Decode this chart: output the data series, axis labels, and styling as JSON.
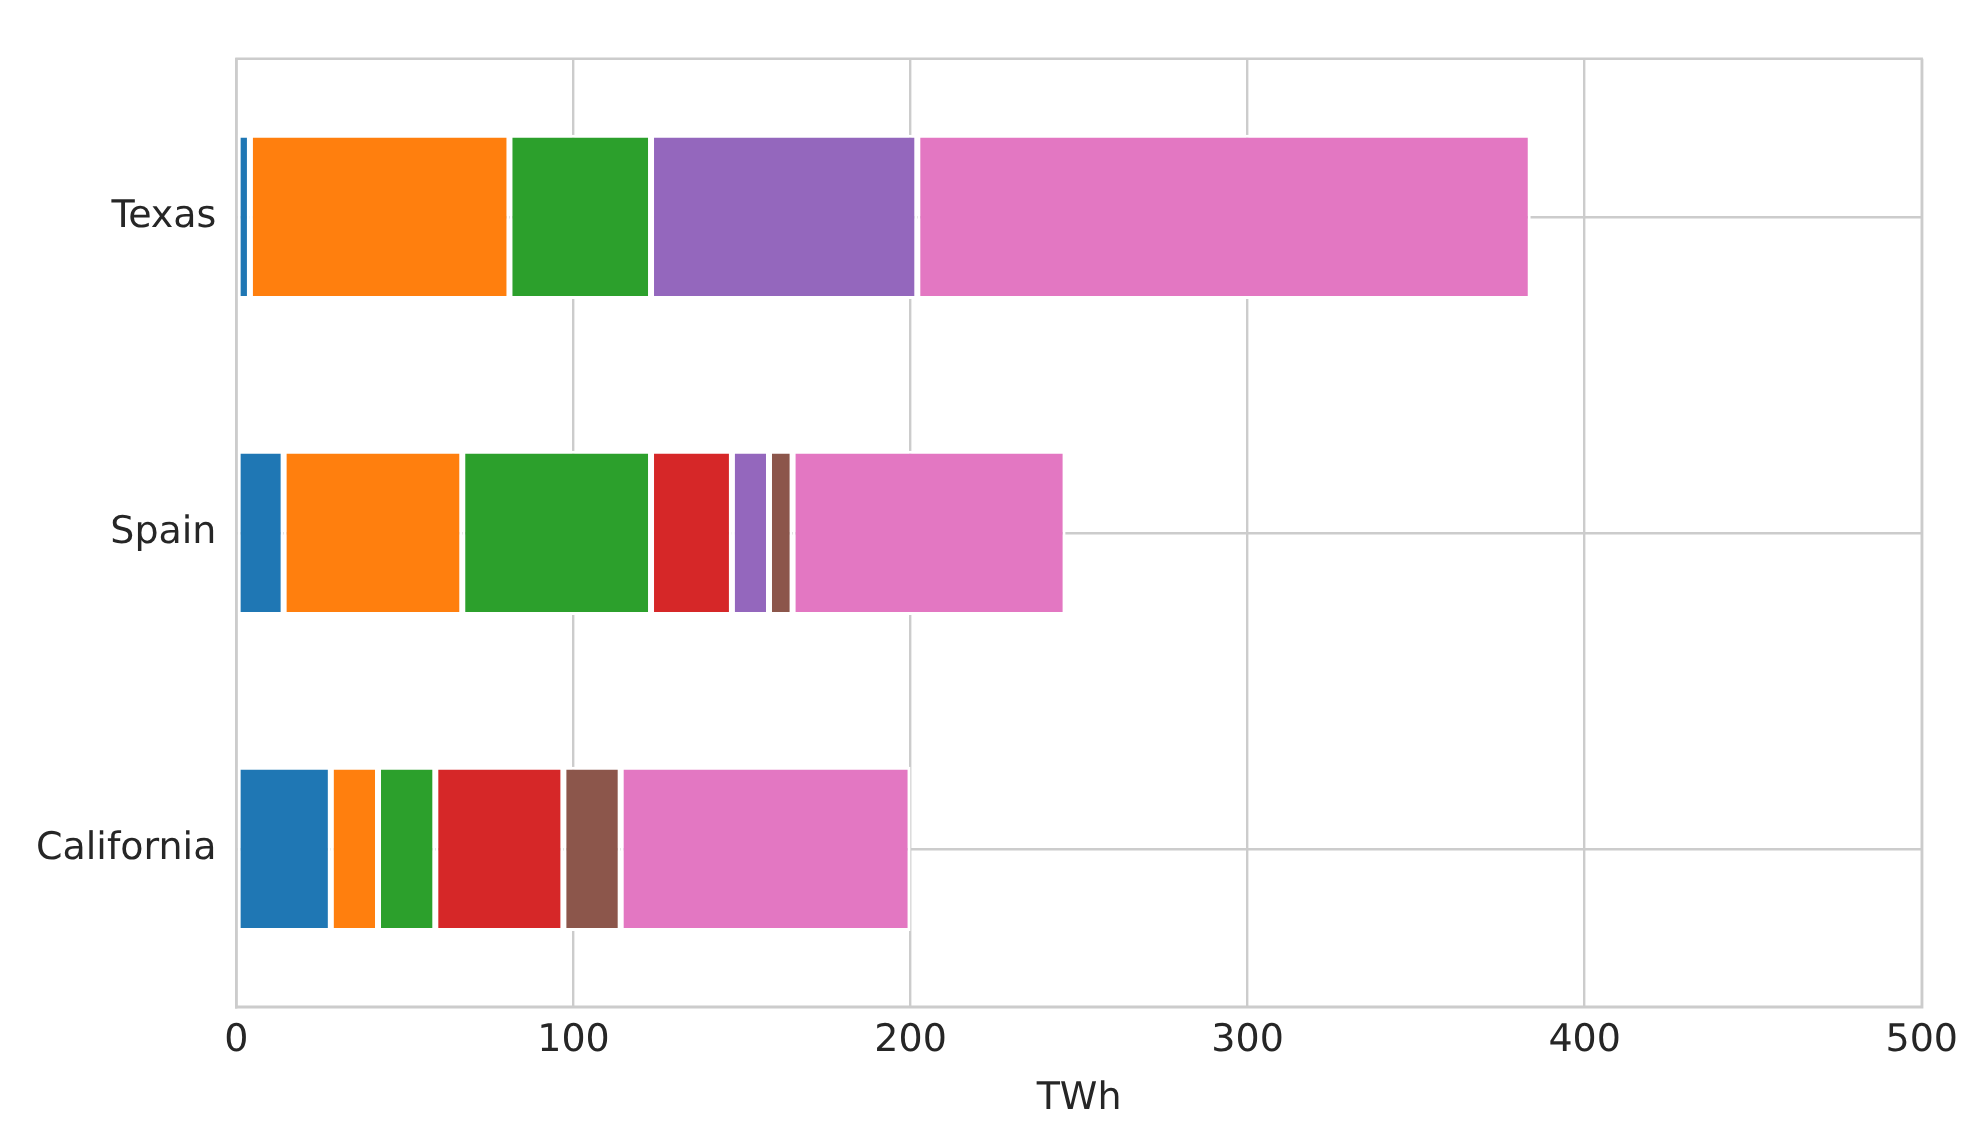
{
  "chart_data": {
    "type": "bar",
    "orientation": "horizontal",
    "stacked": true,
    "xlabel": "TWh",
    "categories": [
      "Texas",
      "Spain",
      "California"
    ],
    "series": [
      {
        "color": "#1f77b4",
        "values": [
          4,
          14,
          28
        ]
      },
      {
        "color": "#ff7f0e",
        "values": [
          77,
          53,
          14
        ]
      },
      {
        "color": "#2ca02c",
        "values": [
          42,
          56,
          17
        ]
      },
      {
        "color": "#d62728",
        "values": [
          0,
          24,
          38
        ]
      },
      {
        "color": "#9467bd",
        "values": [
          79,
          11,
          0
        ]
      },
      {
        "color": "#8c564b",
        "values": [
          0,
          7,
          17
        ]
      },
      {
        "color": "#e377c2",
        "values": [
          182,
          81,
          86
        ]
      }
    ],
    "xlim": [
      0,
      500
    ],
    "xticks": [
      0,
      100,
      200,
      300,
      400,
      500
    ],
    "grid": true,
    "legend": false
  }
}
